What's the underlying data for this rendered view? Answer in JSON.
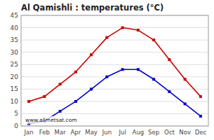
{
  "chart_data": {
    "type": "line",
    "title": "Al Qamishli : temperatures (°C)",
    "categories": [
      "Jan",
      "Feb",
      "Mar",
      "Apr",
      "May",
      "Jun",
      "Jul",
      "Aug",
      "Sep",
      "Oct",
      "Nov",
      "Dec"
    ],
    "series": [
      {
        "color": "#cc0000",
        "marker": "square",
        "values": [
          10,
          12,
          17,
          22,
          29,
          36,
          40,
          39,
          35,
          27,
          19,
          12
        ]
      },
      {
        "color": "#0000cc",
        "marker": "square",
        "values": [
          1,
          2,
          6,
          10,
          15,
          20,
          23,
          23,
          19,
          14,
          9,
          4
        ]
      }
    ],
    "ylim": [
      0,
      45
    ],
    "yticks": [
      0,
      5,
      10,
      15,
      20,
      25,
      30,
      35,
      40,
      45
    ],
    "grid": true,
    "annotation": "www.allmetsat.com"
  }
}
